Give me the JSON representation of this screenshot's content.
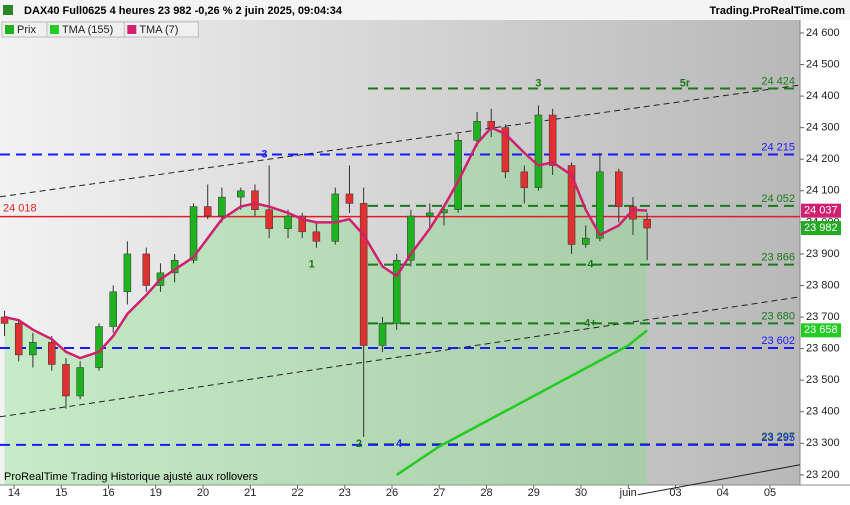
{
  "chart_data": {
    "type": "candlestick",
    "header": "DAX40 Full0625 4 heures 23 982 -0,26 % 2 juin 2025, 09:04:34",
    "site": "Trading.ProRealTime.com",
    "footer": "ProRealTime Trading  Historique ajusté aux rollovers",
    "legend": [
      "Prix",
      "TMA (155)",
      "TMA (7)"
    ],
    "xlim": [
      -0.296,
      16.635
    ],
    "ylim": [
      23168,
      24641
    ],
    "xticks": [
      {
        "value": 0,
        "label": "14"
      },
      {
        "value": 1,
        "label": "15"
      },
      {
        "value": 2,
        "label": "16"
      },
      {
        "value": 3,
        "label": "19"
      },
      {
        "value": 4,
        "label": "20"
      },
      {
        "value": 5,
        "label": "21"
      },
      {
        "value": 6,
        "label": "22"
      },
      {
        "value": 7,
        "label": "23"
      },
      {
        "value": 8,
        "label": "26"
      },
      {
        "value": 9,
        "label": "27"
      },
      {
        "value": 10,
        "label": "28"
      },
      {
        "value": 11,
        "label": "29"
      },
      {
        "value": 12,
        "label": "30"
      },
      {
        "value": 13,
        "label": "juin"
      },
      {
        "value": 14,
        "label": "03"
      },
      {
        "value": 15,
        "label": "04"
      },
      {
        "value": 16,
        "label": "05"
      }
    ],
    "yticks": [
      {
        "value": 24600,
        "label": "24 600"
      },
      {
        "value": 24500,
        "label": "24 500"
      },
      {
        "value": 24400,
        "label": "24 400"
      },
      {
        "value": 24300,
        "label": "24 300"
      },
      {
        "value": 24200,
        "label": "24 200"
      },
      {
        "value": 24100,
        "label": "24 100"
      },
      {
        "value": 24000,
        "label": "24 000"
      },
      {
        "value": 23900,
        "label": "23 900"
      },
      {
        "value": 23800,
        "label": "23 800"
      },
      {
        "value": 23700,
        "label": "23 700"
      },
      {
        "value": 23600,
        "label": "23 600"
      },
      {
        "value": 23500,
        "label": "23 500"
      },
      {
        "value": 23400,
        "label": "23 400"
      },
      {
        "value": 23300,
        "label": "23 300"
      },
      {
        "value": 23200,
        "label": "23 200"
      }
    ],
    "up_color": "#1fb21f",
    "down_color": "#e03030",
    "x": [
      -0.2,
      0.1,
      0.4,
      0.8,
      1.1,
      1.4,
      1.8,
      2.1,
      2.4,
      2.8,
      3.1,
      3.4,
      3.8,
      4.1,
      4.4,
      4.8,
      5.1,
      5.4,
      5.8,
      6.1,
      6.4,
      6.8,
      7.1,
      7.4,
      7.8,
      8.1,
      8.4,
      8.8,
      9.1,
      9.4,
      9.8,
      10.1,
      10.4,
      10.8,
      11.1,
      11.4,
      11.8,
      12.1,
      12.4,
      12.8,
      13.1,
      13.4
    ],
    "open": [
      23700,
      23680,
      23580,
      23620,
      23550,
      23450,
      23540,
      23670,
      23780,
      23900,
      23800,
      23840,
      23880,
      24050,
      24020,
      24080,
      24100,
      24040,
      23980,
      24020,
      23970,
      23940,
      24090,
      24060,
      23610,
      23680,
      23880,
      24020,
      24030,
      24040,
      24260,
      24320,
      24300,
      24160,
      24110,
      24340,
      24180,
      23930,
      23950,
      24160,
      24050,
      24010
    ],
    "high": [
      23720,
      23690,
      23650,
      23640,
      23570,
      23560,
      23680,
      23800,
      23940,
      23920,
      23870,
      23900,
      24060,
      24120,
      24110,
      24110,
      24120,
      24180,
      24040,
      24030,
      24000,
      24110,
      24180,
      24110,
      23700,
      23900,
      24040,
      24060,
      24050,
      24280,
      24350,
      24360,
      24310,
      24180,
      24370,
      24360,
      24190,
      23990,
      24220,
      24170,
      24080,
      24030
    ],
    "low": [
      23640,
      23560,
      23540,
      23530,
      23410,
      23440,
      23530,
      23650,
      23740,
      23780,
      23780,
      23810,
      23870,
      24010,
      24000,
      24040,
      24020,
      23950,
      23950,
      23950,
      23920,
      23930,
      24030,
      23320,
      23590,
      23660,
      23860,
      23980,
      23990,
      24030,
      24240,
      24270,
      24140,
      24060,
      24100,
      24150,
      23900,
      23920,
      23940,
      24000,
      23960,
      23880
    ],
    "close": [
      23680,
      23580,
      23620,
      23550,
      23450,
      23540,
      23670,
      23780,
      23900,
      23800,
      23840,
      23880,
      24050,
      24020,
      24080,
      24100,
      24040,
      23980,
      24020,
      23970,
      23940,
      24090,
      24060,
      23610,
      23680,
      23880,
      24020,
      24030,
      24040,
      24260,
      24320,
      24300,
      24160,
      24110,
      24340,
      24180,
      23930,
      23950,
      24160,
      24050,
      24010,
      23982
    ],
    "series": [
      {
        "name": "TMA (7)",
        "color": "#d0206f",
        "x": [
          -0.2,
          0.1,
          0.4,
          0.8,
          1.1,
          1.4,
          1.8,
          2.1,
          2.4,
          2.8,
          3.1,
          3.4,
          3.8,
          4.1,
          4.4,
          4.8,
          5.1,
          5.4,
          5.8,
          6.1,
          6.4,
          6.8,
          7.1,
          7.4,
          7.8,
          8.1,
          8.4,
          8.8,
          9.1,
          9.4,
          9.8,
          10.1,
          10.4,
          10.8,
          11.1,
          11.4,
          11.8,
          12.1,
          12.4,
          12.8,
          13.1,
          13.4
        ],
        "values": [
          23700,
          23690,
          23660,
          23630,
          23590,
          23570,
          23590,
          23640,
          23710,
          23770,
          23820,
          23850,
          23890,
          23950,
          24010,
          24050,
          24060,
          24050,
          24030,
          24010,
          24000,
          24000,
          24010,
          23960,
          23860,
          23830,
          23900,
          23980,
          24050,
          24130,
          24250,
          24300,
          24280,
          24220,
          24180,
          24190,
          24150,
          24040,
          23960,
          23990,
          24040,
          24037
        ]
      },
      {
        "name": "TMA (155)",
        "color": "#22cc22",
        "x": [
          8.1,
          9,
          10,
          11,
          12,
          13,
          13.4
        ],
        "values": [
          23200,
          23290,
          23370,
          23450,
          23530,
          23610,
          23658
        ]
      }
    ],
    "levels": [
      {
        "value": 24424,
        "label": "24 424",
        "color": "#1a7a1a"
      },
      {
        "value": 24215,
        "label": "24 215",
        "color": "#1a1aff"
      },
      {
        "value": 24052,
        "label": "24 052",
        "color": "#1a7a1a"
      },
      {
        "value": 23866,
        "label": "23 866",
        "color": "#1a7a1a"
      },
      {
        "value": 23680,
        "label": "23 680",
        "color": "#1a7a1a"
      },
      {
        "value": 23602,
        "label": "23 602",
        "color": "#1a1aff"
      },
      {
        "value": 23297,
        "label": "23 297",
        "color": "#1a7a1a"
      },
      {
        "value": 23295,
        "label": "23 295",
        "color": "#1a1aff"
      }
    ],
    "ref_line": {
      "value": 24018,
      "label": "24 018",
      "color": "#e02020"
    },
    "price_boxes": [
      {
        "value": 24037,
        "label": "24 037",
        "color": "#d0206f"
      },
      {
        "value": 23982,
        "label": "23 982",
        "color": "#22aa22"
      },
      {
        "value": 23658,
        "label": "23 658",
        "color": "#22cc22"
      }
    ],
    "trend_lines": [
      {
        "x": [
          -0.296,
          16.635
        ],
        "y": [
          24081,
          24435
        ]
      },
      {
        "x": [
          -0.296,
          16.635
        ],
        "y": [
          23384,
          23764
        ]
      },
      {
        "x": [
          13.2,
          16.635
        ],
        "y": [
          23137,
          23232
        ]
      }
    ],
    "annotations": [
      {
        "text": "3",
        "x": 5.3,
        "y": 24215,
        "color": "#1a1aff"
      },
      {
        "text": "1",
        "x": 6.3,
        "y": 23866,
        "color": "#1a7a1a"
      },
      {
        "text": "2",
        "x": 7.3,
        "y": 23297,
        "color": "#1a7a1a"
      },
      {
        "text": "4",
        "x": 8.15,
        "y": 23297,
        "color": "#1a1aff"
      },
      {
        "text": "3",
        "x": 11.1,
        "y": 24440,
        "color": "#1a7a1a"
      },
      {
        "text": "5r",
        "x": 14.2,
        "y": 24440,
        "color": "#1a7a1a"
      },
      {
        "text": "4",
        "x": 12.2,
        "y": 23866,
        "color": "#1a7a1a"
      },
      {
        "text": "4+",
        "x": 12.2,
        "y": 23680,
        "color": "#1a7a1a"
      }
    ]
  }
}
